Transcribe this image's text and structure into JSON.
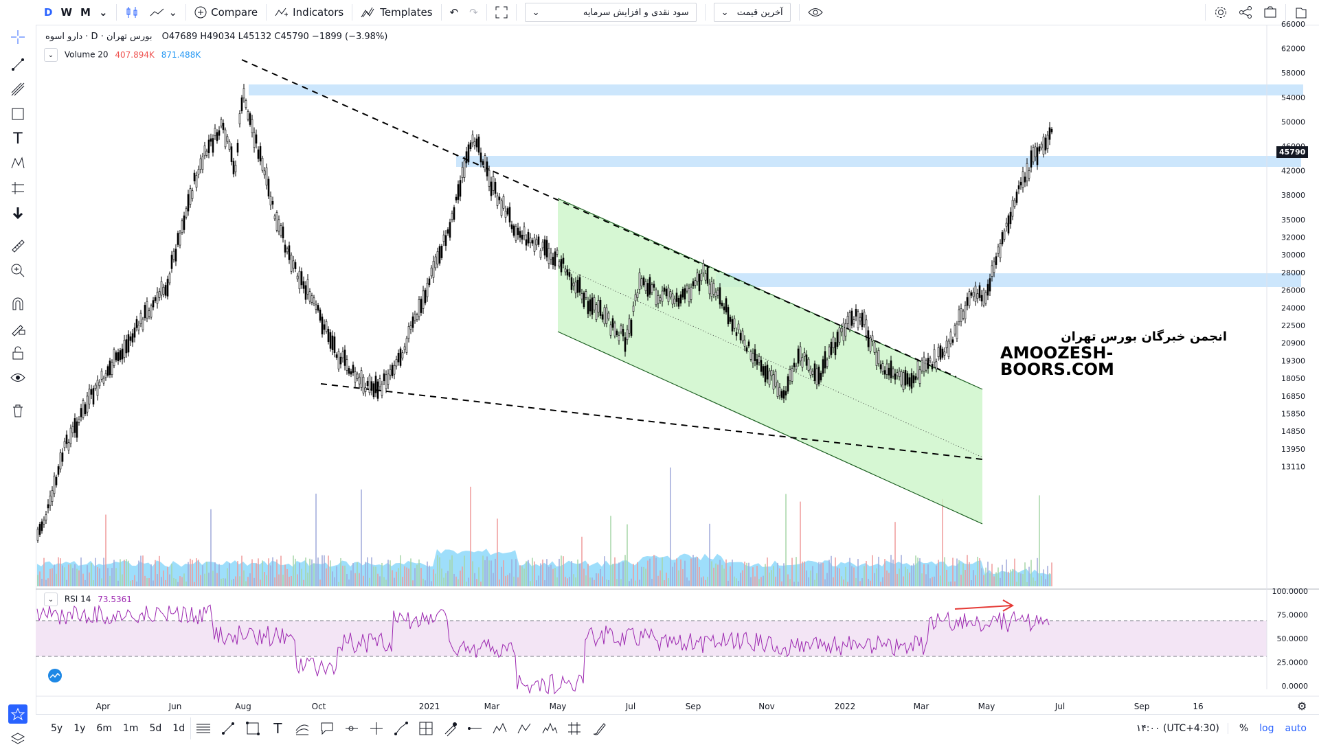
{
  "toolbar": {
    "interval_d": "D",
    "interval_w": "W",
    "interval_m": "M",
    "compare": "Compare",
    "indicators": "Indicators",
    "templates": "Templates",
    "symbol_select": "سود نقدی و افزایش سرمایه",
    "price_select": "آخرین قیمت"
  },
  "legend": {
    "symbol": "دارو اسوه",
    "exchange": "بورس تهران",
    "interval": "D",
    "ohlc": "O47689 H49034 L45132 C45790 −1899 (−3.98%)",
    "volume_label": "Volume 20",
    "volume_v1": "407.894K",
    "volume_v2": "871.488K",
    "rsi_label": "RSI 14",
    "rsi_value": "73.5361"
  },
  "watermark": {
    "line1": "انجمن خبرگان بورس تهران",
    "line2": "AMOOZESH-BOORS.COM"
  },
  "price_axis": [
    "66000",
    "62000",
    "58000",
    "54000",
    "50000",
    "46000",
    "42000",
    "38000",
    "35000",
    "32000",
    "30000",
    "28000",
    "26000",
    "24000",
    "22500",
    "20900",
    "19300",
    "18050",
    "16850",
    "15850",
    "14850",
    "13950",
    "13110"
  ],
  "last_price": "45790",
  "rsi_axis": [
    "100.0000",
    "75.0000",
    "50.0000",
    "25.0000",
    "0.0000"
  ],
  "time_axis": [
    "Apr",
    "Jun",
    "Aug",
    "Oct",
    "2021",
    "Mar",
    "May",
    "Jul",
    "Sep",
    "Nov",
    "2022",
    "Mar",
    "May",
    "Jul",
    "Sep",
    "16"
  ],
  "bottom": {
    "ranges": [
      "5y",
      "1y",
      "6m",
      "1m",
      "5d",
      "1d"
    ],
    "clock": "۱۴:۰۰ (UTC+4:30)",
    "percent": "%",
    "log": "log",
    "auto": "auto"
  },
  "colors": {
    "accent": "#2962ff",
    "zone": "#bbdefb",
    "channel": "#ccf5c8",
    "rsi": "#9c27b0",
    "rsi_band": "#f3e5f5",
    "arrow": "#e53935"
  },
  "icons": [
    "crosshair-icon",
    "trendline-icon",
    "fib-icon",
    "rectangle-icon",
    "text-icon",
    "pattern-icon",
    "prediction-icon",
    "arrow-down-icon",
    "ruler-icon",
    "zoom-icon",
    "magnet-icon",
    "lock-draw-icon",
    "lock-icon",
    "eye-icon",
    "trash-icon",
    "star-icon",
    "layers-icon"
  ]
}
